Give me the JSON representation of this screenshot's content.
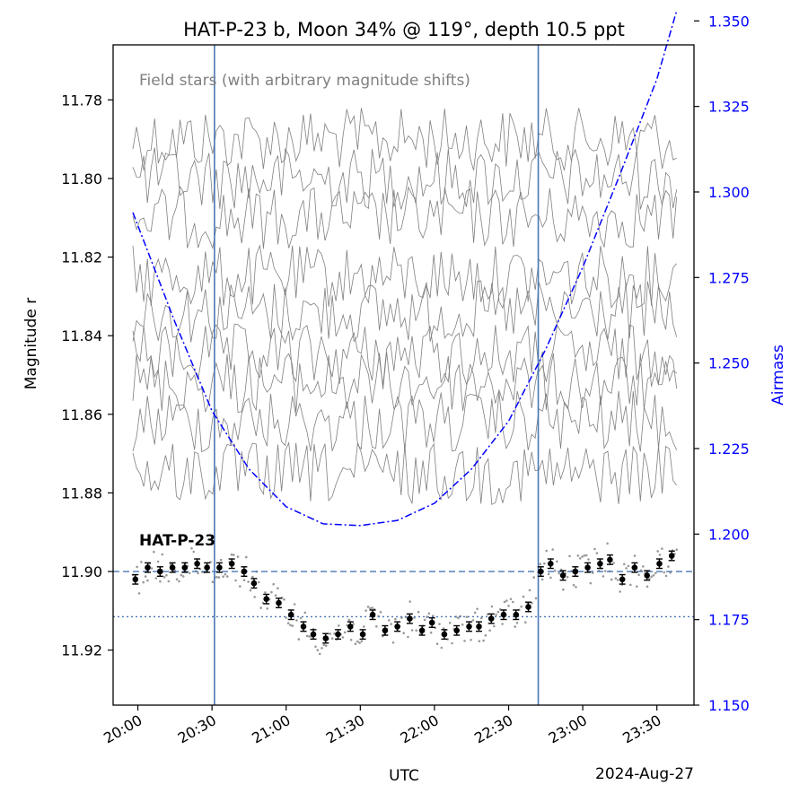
{
  "chart_data": {
    "type": "scatter",
    "title": "HAT-P-23 b, Moon 34% @ 119°, depth 10.5 ppt",
    "xlabel": "UTC",
    "date_label": "2024-Aug-27",
    "ylabel": "Magnitude r",
    "y2label": "Airmass",
    "annotation_field": "Field stars (with arbitrary magnitude shifts)",
    "annotation_target": "HAT-P-23",
    "x_ticks": [
      "20:00",
      "20:30",
      "21:00",
      "21:30",
      "22:00",
      "22:30",
      "23:00",
      "23:30"
    ],
    "y_ticks": [
      "11.78",
      "11.80",
      "11.82",
      "11.84",
      "11.86",
      "11.88",
      "11.90",
      "11.92"
    ],
    "y2_ticks": [
      "1.350",
      "1.325",
      "1.300",
      "1.275",
      "1.250",
      "1.225",
      "1.200",
      "1.175",
      "1.150"
    ],
    "xlim": [
      "19:50",
      "23:45"
    ],
    "ylim": [
      11.934,
      11.766
    ],
    "y2lim": [
      1.15,
      1.343
    ],
    "ingress": "20:31",
    "egress": "22:42",
    "baseline_mag": 11.9,
    "transit_mag": 11.9115,
    "grid": false,
    "colors": {
      "axis": "#000000",
      "airmass": "#0000ff",
      "field_stars": "#808080",
      "target": "#000000",
      "transit_lines": "#4a77b4"
    },
    "airmass": {
      "x": [
        "19:58",
        "20:15",
        "20:30",
        "20:45",
        "21:00",
        "21:15",
        "21:30",
        "21:45",
        "22:00",
        "22:15",
        "22:30",
        "22:45",
        "23:00",
        "23:15",
        "23:30",
        "23:38"
      ],
      "y": [
        1.294,
        1.262,
        1.236,
        1.219,
        1.208,
        1.203,
        1.2025,
        1.204,
        1.209,
        1.219,
        1.233,
        1.254,
        1.278,
        1.305,
        1.333,
        1.353
      ]
    },
    "field_star_levels": [
      11.79,
      11.8,
      11.81,
      11.825,
      11.834,
      11.845,
      11.852,
      11.862,
      11.875
    ],
    "binned": {
      "x": [
        "19:59",
        "20:04",
        "20:09",
        "20:14",
        "20:19",
        "20:24",
        "20:28",
        "20:33",
        "20:38",
        "20:43",
        "20:47",
        "20:52",
        "20:57",
        "21:02",
        "21:07",
        "21:11",
        "21:16",
        "21:21",
        "21:26",
        "21:31",
        "21:35",
        "21:40",
        "21:45",
        "21:50",
        "21:55",
        "21:59",
        "22:04",
        "22:09",
        "22:14",
        "22:18",
        "22:23",
        "22:28",
        "22:33",
        "22:38",
        "22:43",
        "22:47",
        "22:52",
        "22:57",
        "23:02",
        "23:07",
        "23:11",
        "23:16",
        "23:21",
        "23:26",
        "23:31",
        "23:36"
      ],
      "y": [
        11.902,
        11.899,
        11.9,
        11.899,
        11.899,
        11.898,
        11.899,
        11.899,
        11.898,
        11.9,
        11.903,
        11.907,
        11.908,
        11.911,
        11.914,
        11.916,
        11.917,
        11.916,
        11.914,
        11.916,
        11.911,
        11.915,
        11.914,
        11.912,
        11.915,
        11.913,
        11.916,
        11.915,
        11.914,
        11.914,
        11.912,
        11.911,
        11.911,
        11.909,
        11.9,
        11.898,
        11.901,
        11.9,
        11.899,
        11.898,
        11.897,
        11.902,
        11.899,
        11.901,
        11.898,
        11.896
      ],
      "err": 0.0012
    }
  }
}
